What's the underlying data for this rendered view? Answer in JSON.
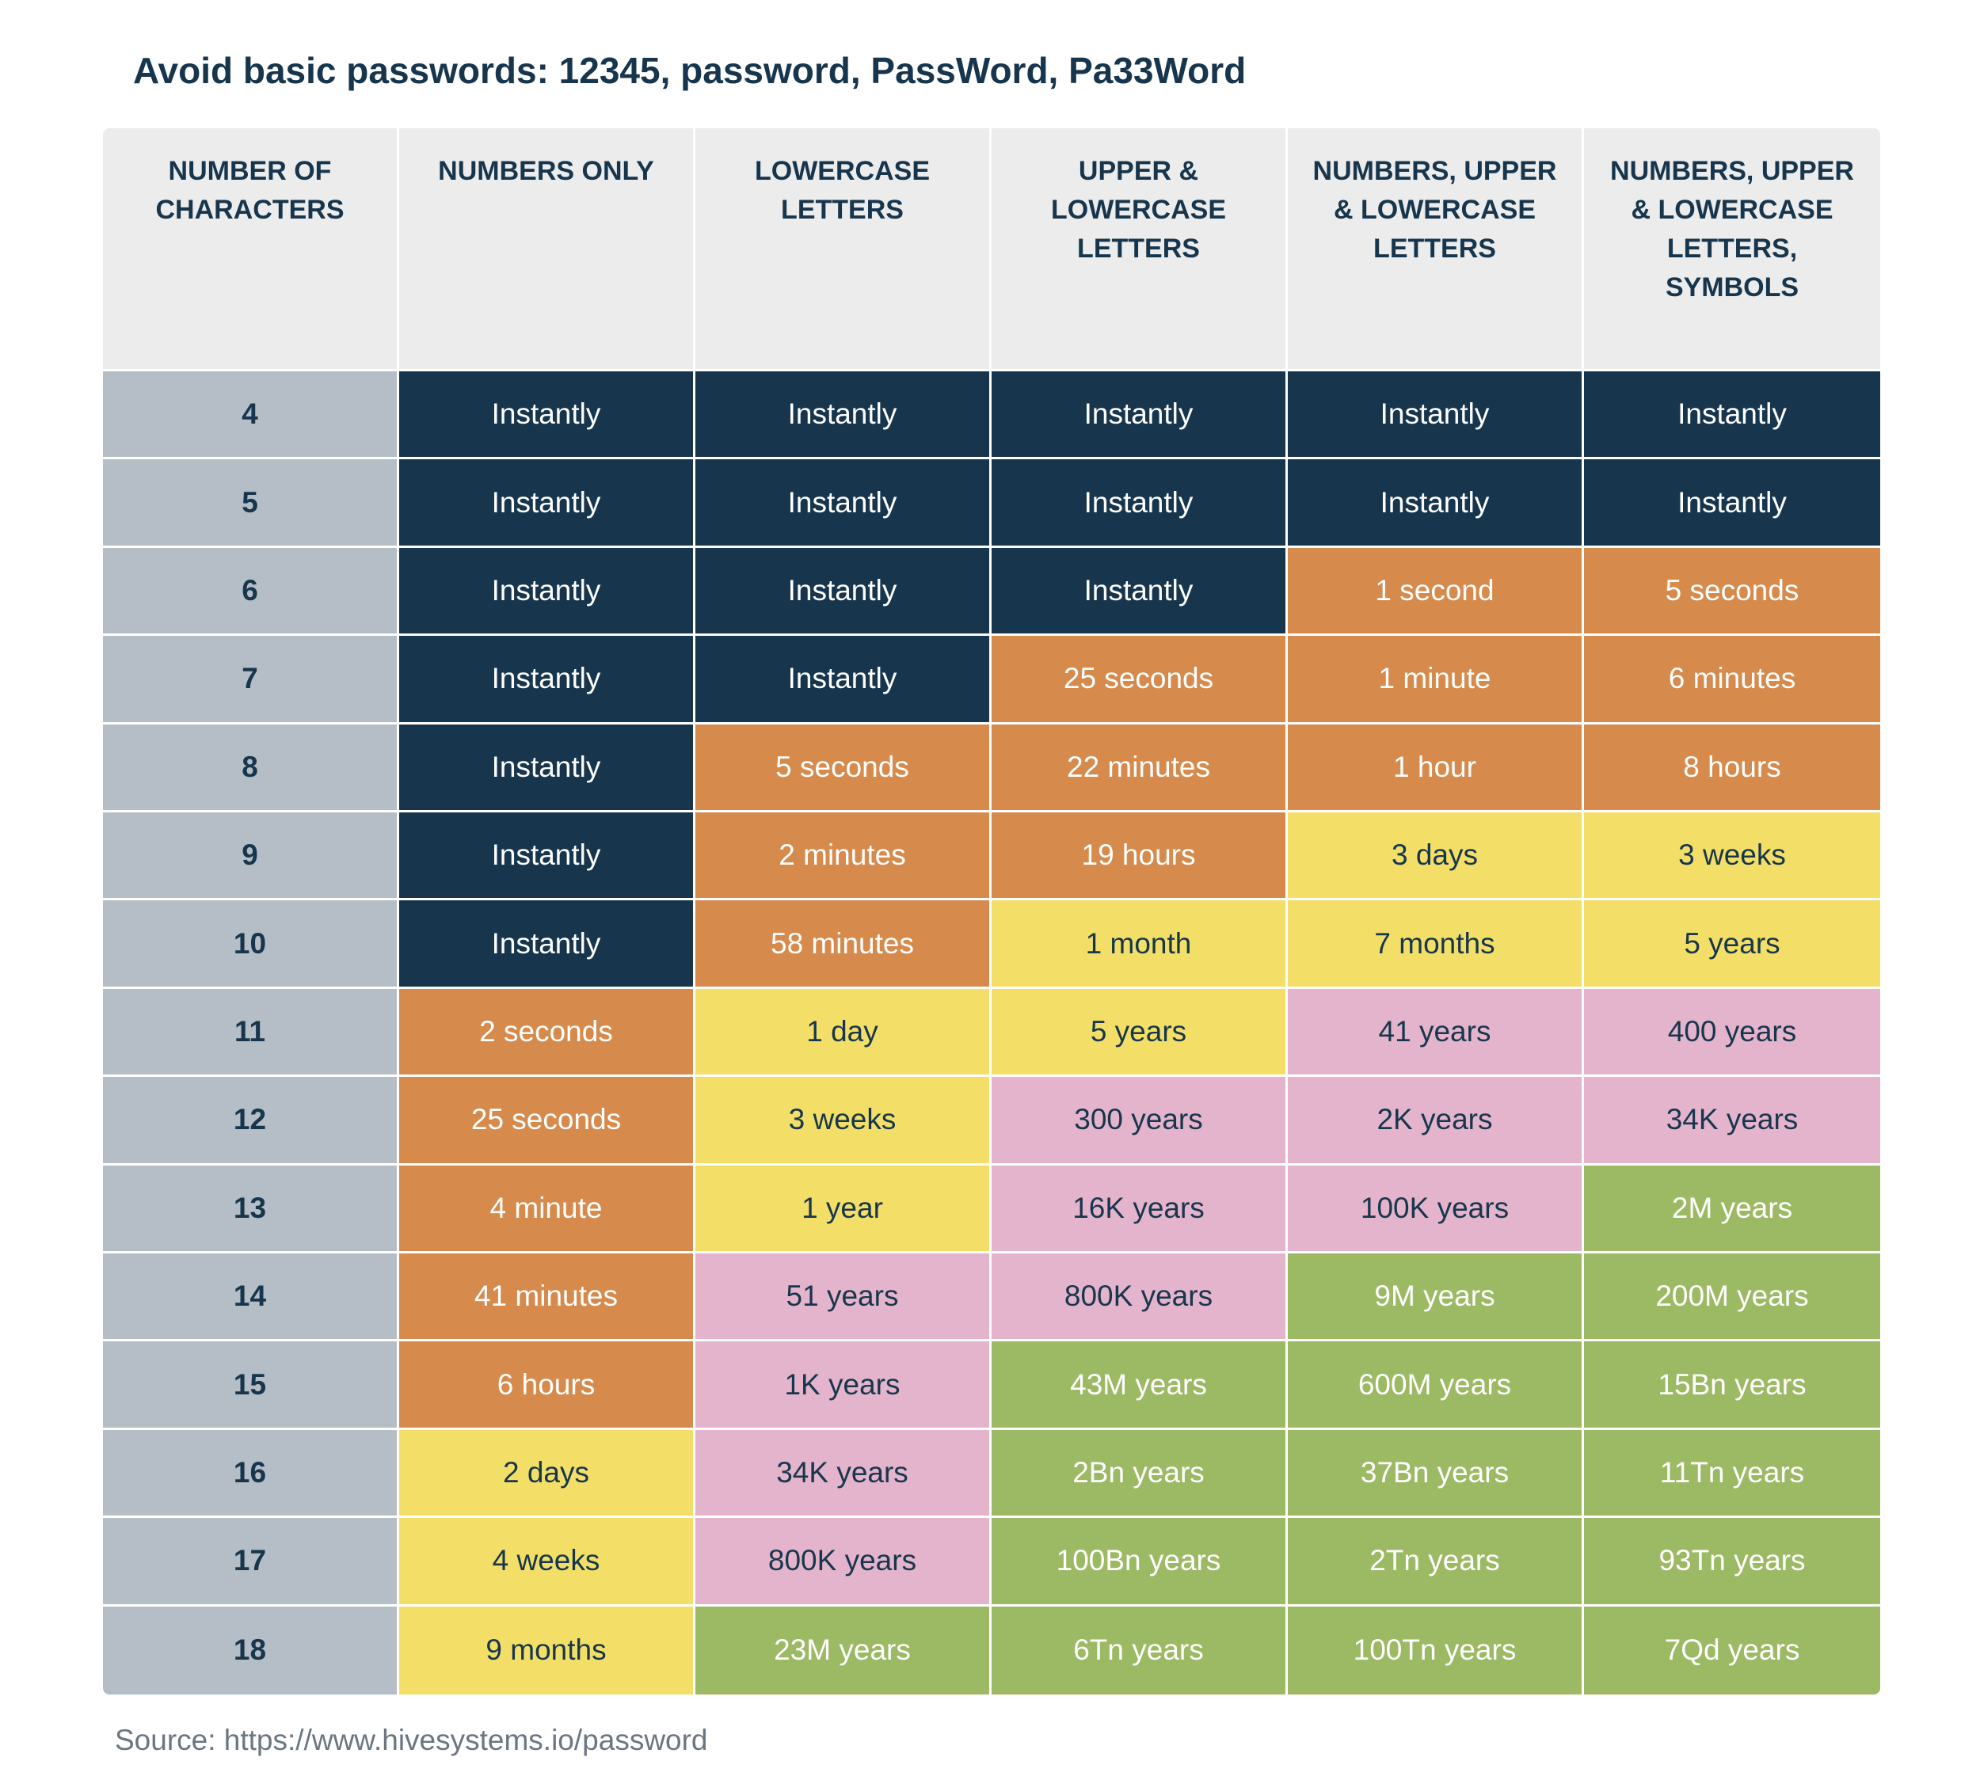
{
  "title": "Avoid basic passwords: 12345, password, PassWord, Pa33Word",
  "source": "Source: https://www.hivesystems.io/password",
  "colors": {
    "header_bg": "#ececec",
    "rowlabel_bg": "#b5bdc6",
    "instant": "#17364d",
    "short": "#d68a4c",
    "medium": "#f3df67",
    "long": "#e4b4cc",
    "very_long": "#9cb964",
    "text_dark": "#17364d",
    "text_light": "#ffffff"
  },
  "chart_data": {
    "type": "table",
    "title": "Avoid basic passwords: 12345, password, PassWord, Pa33Word",
    "columns": [
      "NUMBER OF CHARACTERS",
      "NUMBERS ONLY",
      "LOWERCASE LETTERS",
      "UPPER & LOWERCASE LETTERS",
      "NUMBERS, UPPER & LOWERCASE LETTERS",
      "NUMBERS, UPPER & LOWERCASE LETTERS, SYMBOLS"
    ],
    "rows": [
      {
        "chars": "4",
        "values": [
          "Instantly",
          "Instantly",
          "Instantly",
          "Instantly",
          "Instantly"
        ],
        "tiers": [
          "instant",
          "instant",
          "instant",
          "instant",
          "instant"
        ]
      },
      {
        "chars": "5",
        "values": [
          "Instantly",
          "Instantly",
          "Instantly",
          "Instantly",
          "Instantly"
        ],
        "tiers": [
          "instant",
          "instant",
          "instant",
          "instant",
          "instant"
        ]
      },
      {
        "chars": "6",
        "values": [
          "Instantly",
          "Instantly",
          "Instantly",
          "1 second",
          "5 seconds"
        ],
        "tiers": [
          "instant",
          "instant",
          "instant",
          "short",
          "short"
        ]
      },
      {
        "chars": "7",
        "values": [
          "Instantly",
          "Instantly",
          "25 seconds",
          "1 minute",
          "6 minutes"
        ],
        "tiers": [
          "instant",
          "instant",
          "short",
          "short",
          "short"
        ]
      },
      {
        "chars": "8",
        "values": [
          "Instantly",
          "5 seconds",
          "22 minutes",
          "1 hour",
          "8 hours"
        ],
        "tiers": [
          "instant",
          "short",
          "short",
          "short",
          "short"
        ]
      },
      {
        "chars": "9",
        "values": [
          "Instantly",
          "2 minutes",
          "19 hours",
          "3 days",
          "3 weeks"
        ],
        "tiers": [
          "instant",
          "short",
          "short",
          "medium",
          "medium"
        ]
      },
      {
        "chars": "10",
        "values": [
          "Instantly",
          "58 minutes",
          "1 month",
          "7 months",
          "5 years"
        ],
        "tiers": [
          "instant",
          "short",
          "medium",
          "medium",
          "medium"
        ]
      },
      {
        "chars": "11",
        "values": [
          "2 seconds",
          "1 day",
          "5 years",
          "41 years",
          "400 years"
        ],
        "tiers": [
          "short",
          "medium",
          "medium",
          "long",
          "long"
        ]
      },
      {
        "chars": "12",
        "values": [
          "25 seconds",
          "3 weeks",
          "300 years",
          "2K years",
          "34K years"
        ],
        "tiers": [
          "short",
          "medium",
          "long",
          "long",
          "long"
        ]
      },
      {
        "chars": "13",
        "values": [
          "4 minute",
          "1 year",
          "16K years",
          "100K years",
          "2M years"
        ],
        "tiers": [
          "short",
          "medium",
          "long",
          "long",
          "very_long"
        ]
      },
      {
        "chars": "14",
        "values": [
          "41 minutes",
          "51 years",
          "800K years",
          "9M years",
          "200M years"
        ],
        "tiers": [
          "short",
          "long",
          "long",
          "very_long",
          "very_long"
        ]
      },
      {
        "chars": "15",
        "values": [
          "6 hours",
          "1K years",
          "43M years",
          "600M years",
          "15Bn years"
        ],
        "tiers": [
          "short",
          "long",
          "very_long",
          "very_long",
          "very_long"
        ]
      },
      {
        "chars": "16",
        "values": [
          "2 days",
          "34K years",
          "2Bn years",
          "37Bn years",
          "11Tn years"
        ],
        "tiers": [
          "medium",
          "long",
          "very_long",
          "very_long",
          "very_long"
        ]
      },
      {
        "chars": "17",
        "values": [
          "4 weeks",
          "800K years",
          "100Bn years",
          "2Tn years",
          "93Tn years"
        ],
        "tiers": [
          "medium",
          "long",
          "very_long",
          "very_long",
          "very_long"
        ]
      },
      {
        "chars": "18",
        "values": [
          "9 months",
          "23M years",
          "6Tn years",
          "100Tn years",
          "7Qd years"
        ],
        "tiers": [
          "medium",
          "very_long",
          "very_long",
          "very_long",
          "very_long"
        ]
      }
    ]
  }
}
